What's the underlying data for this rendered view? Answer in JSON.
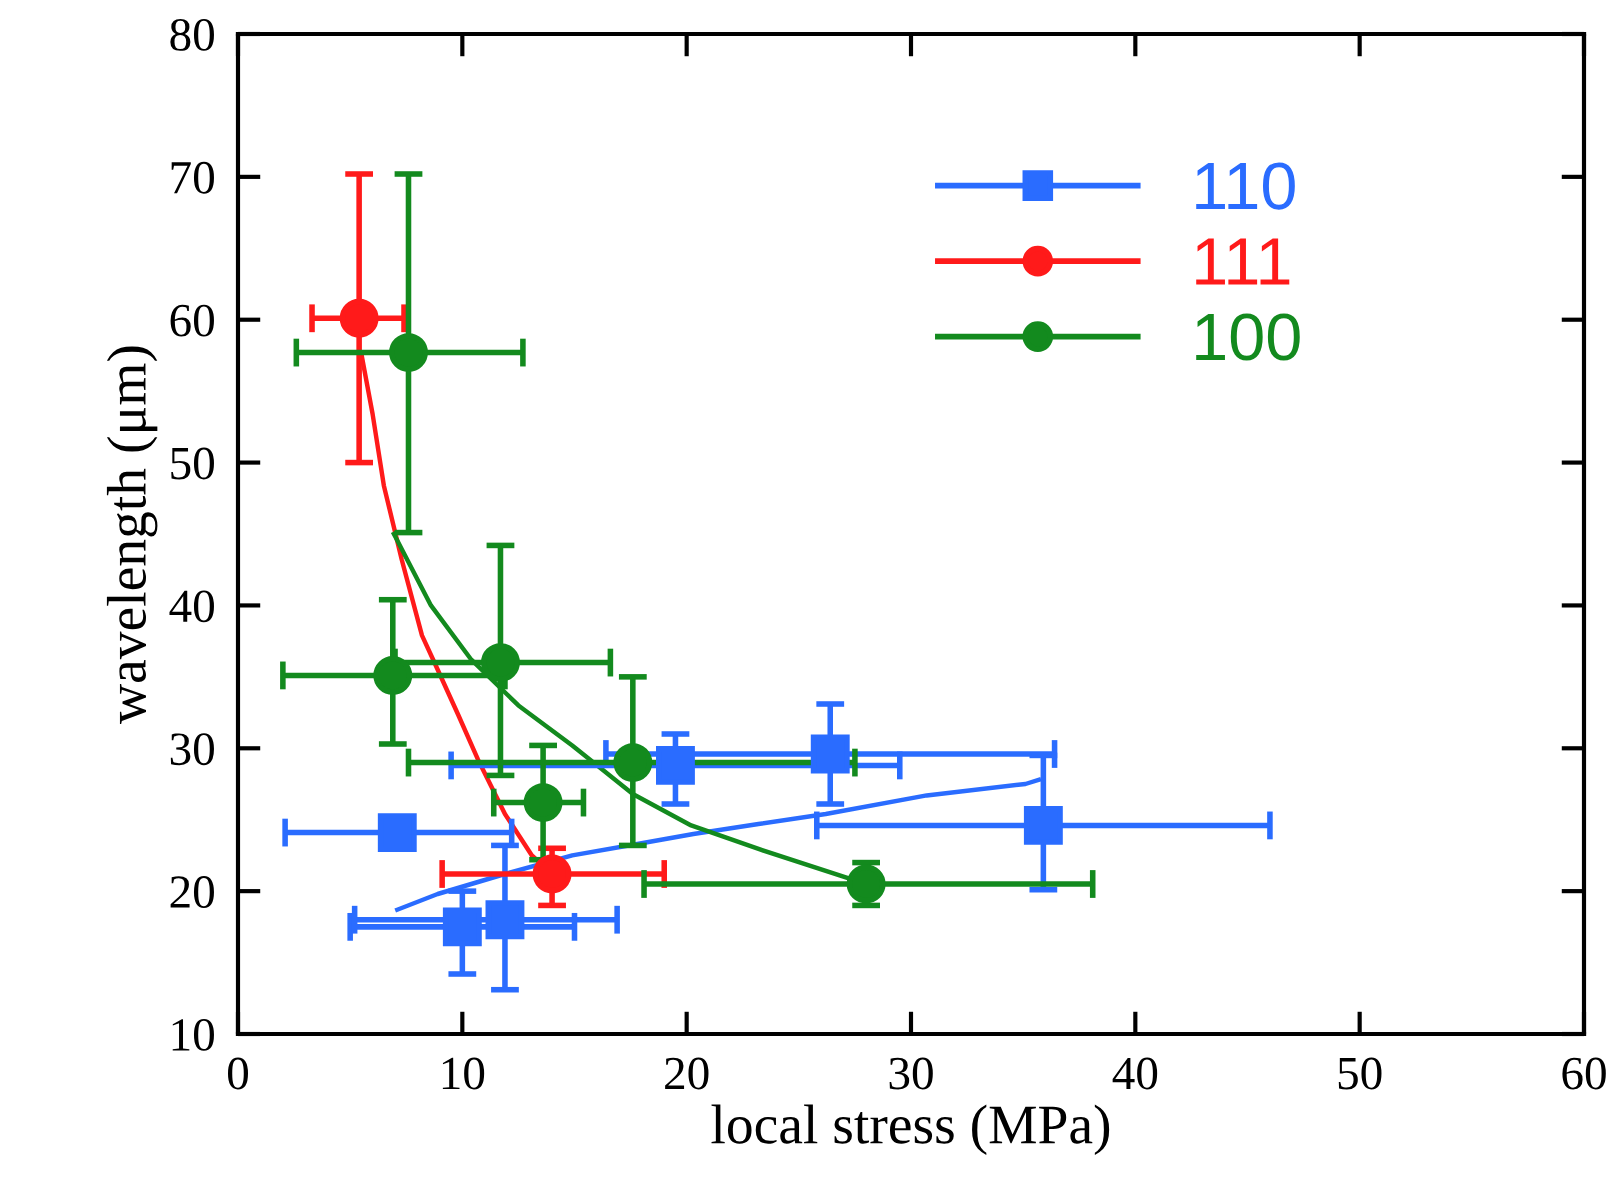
{
  "chart_data": {
    "type": "scatter",
    "xlabel": "local stress (MPa)",
    "ylabel": "wavelength (μm)",
    "xlim": [
      0,
      60
    ],
    "xticks": [
      0,
      10,
      20,
      30,
      40,
      50,
      60
    ],
    "ylim": [
      10,
      80
    ],
    "yticks": [
      10,
      20,
      30,
      40,
      50,
      60,
      70,
      80
    ],
    "grid": false,
    "legend": "top right",
    "series": [
      {
        "name": "110",
        "color": "#2a6cff",
        "marker": "square",
        "x": [
          7.1,
          10.0,
          11.9,
          19.5,
          26.4,
          35.9
        ],
        "values": [
          24.1,
          17.5,
          18.0,
          28.8,
          29.6,
          24.6
        ],
        "errors": [
          null,
          [
            14.2,
            20.0
          ],
          [
            13.1,
            23.2
          ],
          [
            26.1,
            31.0
          ],
          [
            26.1,
            33.1
          ],
          [
            20.1,
            29.5
          ]
        ],
        "xerrors": [
          [
            2.1,
            12.2
          ],
          [
            5.0,
            15.0
          ],
          [
            5.2,
            16.9
          ],
          [
            9.5,
            29.5
          ],
          [
            16.4,
            36.4
          ],
          [
            25.8,
            46.0
          ]
        ]
      },
      {
        "name": "111",
        "color": "#ff1a1a",
        "marker": "circle",
        "x": [
          5.4,
          14.0
        ],
        "values": [
          60.1,
          21.2
        ],
        "errors": [
          [
            50.0,
            70.2
          ],
          [
            19.0,
            23.0
          ]
        ],
        "xerrors": [
          [
            3.3,
            7.4
          ],
          [
            9.1,
            19.0
          ]
        ]
      },
      {
        "name": "100",
        "color": "#138a1e",
        "marker": "circle",
        "x": [
          7.6,
          6.9,
          11.7,
          13.6,
          17.6,
          28.0
        ],
        "values": [
          57.7,
          35.1,
          36.0,
          26.2,
          29.0,
          20.5
        ],
        "errors": [
          [
            45.1,
            70.2
          ],
          [
            30.3,
            40.4
          ],
          [
            28.1,
            44.2
          ],
          [
            22.2,
            30.2
          ],
          [
            23.2,
            35.0
          ],
          [
            19.0,
            22.0
          ]
        ],
        "xerrors": [
          [
            2.6,
            12.7
          ],
          [
            2.0,
            11.9
          ],
          [
            7.0,
            16.6
          ],
          [
            11.4,
            15.4
          ],
          [
            7.6,
            27.5
          ],
          [
            18.1,
            38.1
          ]
        ]
      },
      {
        "color": "#2a6cff",
        "type": "line",
        "x": [
          7.1,
          8.9,
          11.9,
          14.9,
          17.8,
          20.3,
          23.2,
          26.2,
          30.7,
          35.1,
          35.7
        ],
        "values": [
          18.7,
          19.8,
          21.2,
          22.5,
          23.3,
          24.0,
          24.7,
          25.4,
          26.7,
          27.5,
          27.8
        ]
      },
      {
        "color": "#ff1a1a",
        "type": "line",
        "x": [
          5.5,
          6.0,
          6.5,
          7.3,
          8.2,
          8.7,
          9.8,
          10.7,
          11.9,
          13.1,
          14.0
        ],
        "values": [
          57.6,
          53.4,
          48.4,
          43.2,
          37.9,
          36.2,
          32.4,
          29.2,
          25.4,
          22.5,
          21.2
        ]
      },
      {
        "color": "#138a1e",
        "type": "line",
        "x": [
          6.95,
          8.6,
          10.4,
          12.5,
          14.9,
          17.6,
          20.2,
          23.3,
          27.4,
          28.0
        ],
        "values": [
          45.0,
          40.0,
          36.2,
          33.0,
          30.2,
          26.8,
          24.6,
          22.9,
          20.8,
          20.5
        ]
      }
    ]
  }
}
